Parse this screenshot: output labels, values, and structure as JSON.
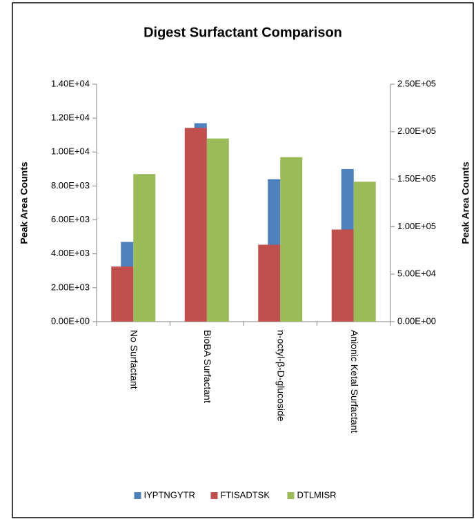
{
  "chart_data": {
    "type": "bar",
    "title": "Digest Surfactant Comparison",
    "y_label": "Peak Area Counts",
    "y2_label": "Peak Area Counts",
    "categories": [
      "No Surfactant",
      "BioBA Surfactant",
      "n-octyl-β-D-glucoside",
      "Anionic Ketal Surfactant"
    ],
    "series": [
      {
        "name": "IYPTNGYTR",
        "color": "#4f81bd",
        "values": [
          4700,
          11700,
          8400,
          9000
        ]
      },
      {
        "name": "FTISADTSK",
        "color": "#c0504d",
        "values": [
          58000,
          204000,
          81000,
          97000
        ],
        "axis": "y2"
      },
      {
        "name": "DTLMISR",
        "color": "#9bbb59",
        "values": [
          8700,
          10800,
          9700,
          8250
        ]
      }
    ],
    "ylim": [
      0,
      14000
    ],
    "yticks": [
      {
        "value": 0,
        "label": "0.00E+00"
      },
      {
        "value": 2000,
        "label": "2.00E+03"
      },
      {
        "value": 4000,
        "label": "4.00E+03"
      },
      {
        "value": 6000,
        "label": "6.00E+03"
      },
      {
        "value": 8000,
        "label": "8.00E+03"
      },
      {
        "value": 10000,
        "label": "1.00E+04"
      },
      {
        "value": 12000,
        "label": "1.20E+04"
      },
      {
        "value": 14000,
        "label": "1.40E+04"
      }
    ],
    "y2lim": [
      0,
      250000
    ],
    "y2ticks": [
      {
        "value": 0,
        "label": "0.00E+00"
      },
      {
        "value": 50000,
        "label": "5.00E+04"
      },
      {
        "value": 100000,
        "label": "1.00E+05"
      },
      {
        "value": 150000,
        "label": "1.50E+05"
      },
      {
        "value": 200000,
        "label": "2.00E+05"
      },
      {
        "value": 250000,
        "label": "2.50E+05"
      }
    ],
    "legend": "bottom"
  }
}
